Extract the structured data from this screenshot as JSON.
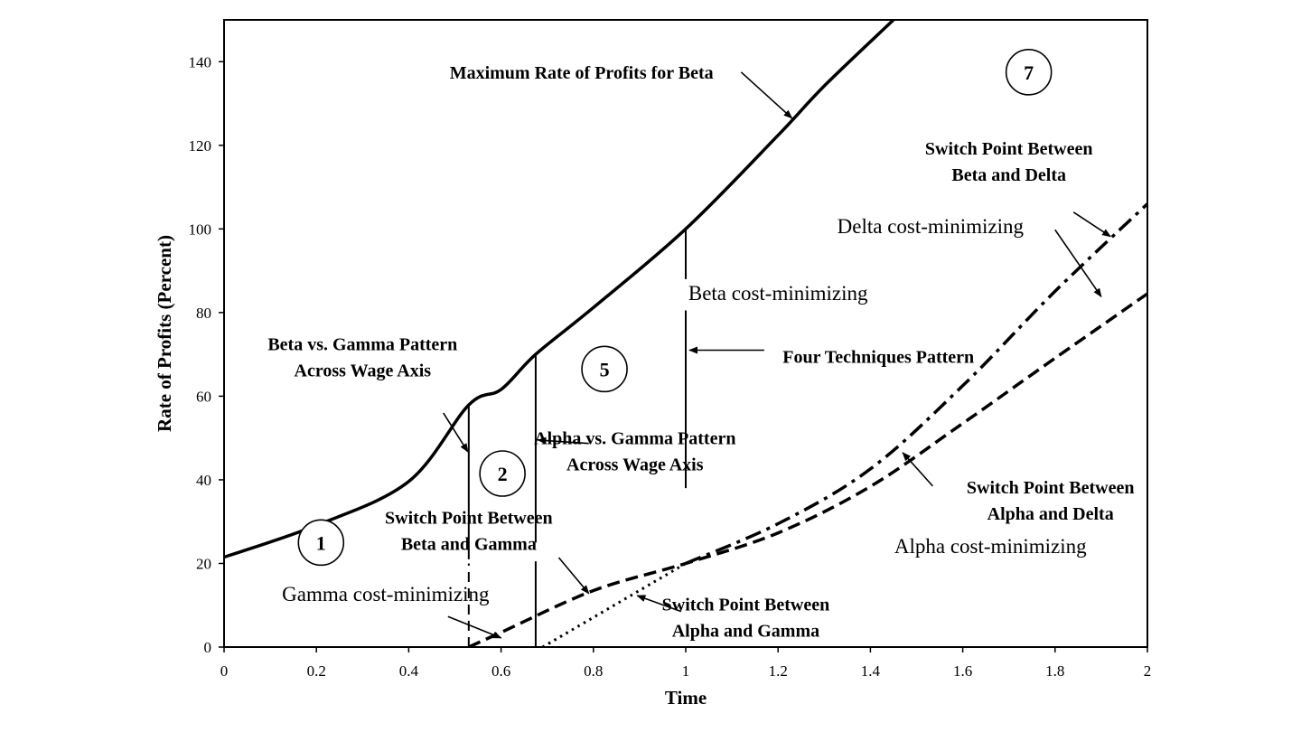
{
  "chart_data": {
    "type": "line",
    "xlabel": "Time",
    "ylabel": "Rate of Profits (Percent)",
    "xlim": [
      0,
      2
    ],
    "ylim": [
      0,
      150
    ],
    "x_ticks": [
      "0",
      "0.2",
      "0.4",
      "0.6",
      "0.8",
      "1",
      "1.2",
      "1.4",
      "1.6",
      "1.8",
      "2"
    ],
    "y_ticks": [
      "0",
      "20",
      "40",
      "60",
      "80",
      "100",
      "120",
      "140"
    ],
    "grid": false,
    "series": [
      {
        "style": "solid",
        "points": [
          [
            0,
            21.5
          ],
          [
            0.2,
            29.1
          ],
          [
            0.4,
            39.6
          ],
          [
            0.53,
            57.9
          ],
          [
            0.6,
            61.6
          ],
          [
            0.675,
            70
          ],
          [
            0.8,
            81.2
          ],
          [
            1,
            100
          ],
          [
            1.2,
            122.4
          ],
          [
            1.3,
            134.2
          ],
          [
            1.45,
            150
          ]
        ]
      },
      {
        "style": "dashed",
        "points": [
          [
            0.53,
            0
          ],
          [
            0.6,
            3.5
          ],
          [
            0.8,
            13.5
          ],
          [
            1,
            20
          ],
          [
            1.2,
            27.3
          ],
          [
            1.4,
            38.4
          ],
          [
            1.6,
            53.5
          ],
          [
            1.8,
            69.1
          ],
          [
            2,
            84.5
          ]
        ]
      },
      {
        "style": "dotted",
        "points": [
          [
            0.69,
            0
          ],
          [
            0.8,
            7.1
          ],
          [
            1,
            20
          ]
        ]
      },
      {
        "style": "dash-dot",
        "points": [
          [
            1,
            20
          ],
          [
            1.2,
            29.5
          ],
          [
            1.4,
            42.6
          ],
          [
            1.6,
            62.5
          ],
          [
            1.8,
            85.1
          ],
          [
            2,
            106
          ]
        ]
      }
    ],
    "vertical_lines": [
      {
        "x": 0.53,
        "y_top": 57.9,
        "segments": [
          [
            21,
            57.9
          ],
          [
            0,
            20
          ]
        ],
        "lower_dashed": true
      },
      {
        "x": 0.675,
        "y_top": 70,
        "segments": [
          [
            0,
            20.5
          ],
          [
            25,
            70
          ]
        ]
      },
      {
        "x": 1.0,
        "y_top": 100,
        "segments": [
          [
            38,
            80.5
          ],
          [
            88,
            100
          ]
        ]
      }
    ],
    "annotations": [
      {
        "id": "max-beta",
        "lines": [
          "Maximum Rate of Profits for Beta"
        ],
        "bold": true,
        "x": 1.06,
        "y": 136,
        "anchor": "end",
        "arrow": [
          [
            1.12,
            137.5
          ],
          [
            1.23,
            126.5
          ]
        ]
      },
      {
        "id": "sp-beta-delta",
        "lines": [
          "Switch Point Between",
          "Beta and Delta"
        ],
        "bold": true,
        "x": 1.7,
        "y": 117.8,
        "anchor": "middle",
        "arrow": [
          [
            1.84,
            104
          ],
          [
            1.92,
            98.2
          ]
        ]
      },
      {
        "id": "delta-cm",
        "lines": [
          "Delta cost-minimizing"
        ],
        "bold": false,
        "x": 1.53,
        "y": 99,
        "anchor": "middle",
        "arrow": [
          [
            1.8,
            99.8
          ],
          [
            1.9,
            83.8
          ]
        ]
      },
      {
        "id": "beta-cm",
        "lines": [
          "Beta cost-minimizing"
        ],
        "bold": false,
        "x": 1.2,
        "y": 83,
        "anchor": "middle"
      },
      {
        "id": "four-tech",
        "lines": [
          "Four Techniques Pattern"
        ],
        "bold": true,
        "x": 1.21,
        "y": 68,
        "anchor": "start",
        "arrow": [
          [
            1.17,
            71
          ],
          [
            1.008,
            71
          ]
        ]
      },
      {
        "id": "beta-gamma-wage",
        "lines": [
          "Beta vs. Gamma Pattern",
          "Across Wage Axis"
        ],
        "bold": true,
        "x": 0.3,
        "y": 71,
        "anchor": "middle",
        "arrow": [
          [
            0.475,
            56
          ],
          [
            0.528,
            46.7
          ]
        ]
      },
      {
        "id": "alpha-gamma-wage",
        "lines": [
          "Alpha vs. Gamma Pattern",
          "Across Wage Axis"
        ],
        "bold": true,
        "x": 0.89,
        "y": 48.5,
        "anchor": "middle",
        "arrow": [
          [
            0.79,
            48.7
          ],
          [
            0.68,
            49.5
          ]
        ]
      },
      {
        "id": "sp-alpha-delta",
        "lines": [
          "Switch Point Between",
          "Alpha and Delta"
        ],
        "bold": true,
        "x": 1.79,
        "y": 36.7,
        "anchor": "middle",
        "arrow": [
          [
            1.535,
            38.5
          ],
          [
            1.47,
            46.5
          ]
        ]
      },
      {
        "id": "sp-beta-gamma",
        "lines": [
          "Switch Point Between",
          "Beta and Gamma"
        ],
        "bold": true,
        "x": 0.53,
        "y": 29.5,
        "anchor": "middle",
        "arrow": [
          [
            0.725,
            21.4
          ],
          [
            0.79,
            12.8
          ]
        ]
      },
      {
        "id": "alpha-cm",
        "lines": [
          "Alpha cost-minimizing"
        ],
        "bold": false,
        "x": 1.66,
        "y": 22.5,
        "anchor": "middle"
      },
      {
        "id": "gamma-cm",
        "lines": [
          "Gamma cost-minimizing"
        ],
        "bold": false,
        "x": 0.35,
        "y": 11,
        "anchor": "middle",
        "arrow": [
          [
            0.485,
            7.3
          ],
          [
            0.6,
            2.2
          ]
        ]
      },
      {
        "id": "sp-alpha-gamma",
        "lines": [
          "Switch Point Between",
          "Alpha and Gamma"
        ],
        "bold": true,
        "x": 1.13,
        "y": 8.7,
        "anchor": "middle",
        "arrow": [
          [
            0.99,
            8.5
          ],
          [
            0.895,
            12.3
          ]
        ]
      }
    ],
    "regions": [
      {
        "label": "1",
        "x": 0.21,
        "y": 25
      },
      {
        "label": "2",
        "x": 0.603,
        "y": 41.5
      },
      {
        "label": "5",
        "x": 0.824,
        "y": 66.5
      },
      {
        "label": "7",
        "x": 1.743,
        "y": 137.5
      }
    ]
  }
}
